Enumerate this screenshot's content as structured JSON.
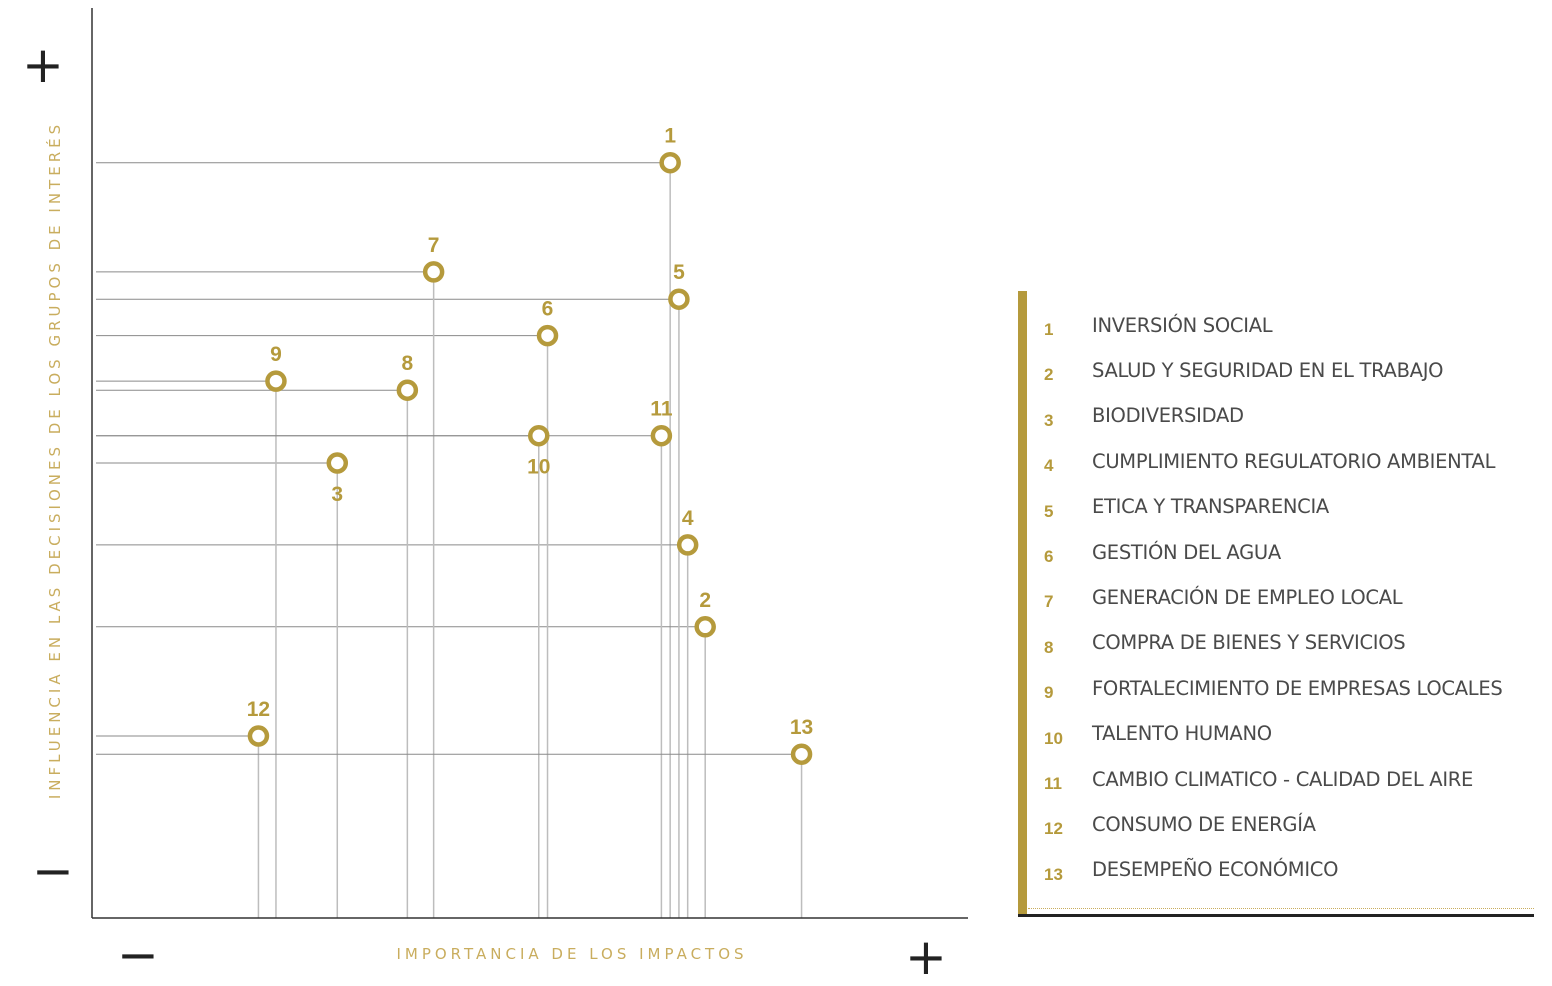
{
  "chart_data": {
    "type": "scatter",
    "xlabel": "IMPORTANCIA DE LOS IMPACTOS",
    "ylabel": "INFLUENCIA EN LAS DECISIONES DE LOS GRUPOS DE INTERÉS",
    "x_min_label": "−",
    "x_max_label": "+",
    "y_min_label": "−",
    "y_max_label": "+",
    "xlim": [
      0,
      100
    ],
    "ylim": [
      0,
      100
    ],
    "grid": false,
    "marker_color": "#b59a3c",
    "points": [
      {
        "label": "1",
        "x": 66,
        "y": 83
      },
      {
        "label": "2",
        "x": 70,
        "y": 32
      },
      {
        "label": "3",
        "x": 28,
        "y": 50
      },
      {
        "label": "4",
        "x": 68,
        "y": 41
      },
      {
        "label": "5",
        "x": 67,
        "y": 68
      },
      {
        "label": "6",
        "x": 52,
        "y": 64
      },
      {
        "label": "7",
        "x": 39,
        "y": 71
      },
      {
        "label": "8",
        "x": 36,
        "y": 58
      },
      {
        "label": "9",
        "x": 21,
        "y": 59
      },
      {
        "label": "10",
        "x": 51,
        "y": 53
      },
      {
        "label": "11",
        "x": 65,
        "y": 53
      },
      {
        "label": "12",
        "x": 19,
        "y": 20
      },
      {
        "label": "13",
        "x": 81,
        "y": 18
      }
    ]
  },
  "legend": {
    "items": [
      {
        "num": "1",
        "text": "INVERSIÓN SOCIAL"
      },
      {
        "num": "2",
        "text": "SALUD Y SEGURIDAD EN EL TRABAJO"
      },
      {
        "num": "3",
        "text": "BIODIVERSIDAD"
      },
      {
        "num": "4",
        "text": "CUMPLIMIENTO REGULATORIO AMBIENTAL"
      },
      {
        "num": "5",
        "text": "ETICA Y TRANSPARENCIA"
      },
      {
        "num": "6",
        "text": "GESTIÓN DEL AGUA"
      },
      {
        "num": "7",
        "text": "GENERACIÓN DE EMPLEO LOCAL"
      },
      {
        "num": "8",
        "text": "COMPRA DE BIENES Y SERVICIOS"
      },
      {
        "num": "9",
        "text": "FORTALECIMIENTO DE EMPRESAS LOCALES"
      },
      {
        "num": "10",
        "text": "TALENTO HUMANO"
      },
      {
        "num": "11",
        "text": "CAMBIO CLIMATICO - CALIDAD DEL AIRE"
      },
      {
        "num": "12",
        "text": "CONSUMO DE ENERGÍA"
      },
      {
        "num": "13",
        "text": "DESEMPEÑO ECONÓMICO"
      }
    ]
  }
}
